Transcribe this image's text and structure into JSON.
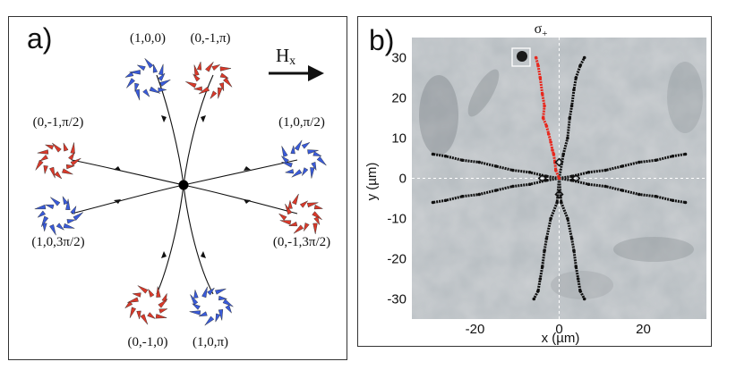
{
  "panel_a": {
    "label": "a)",
    "field_label_main": "H",
    "field_label_sub": "x",
    "states": [
      {
        "label": "(1,0,0)",
        "color": "#3a5bd9"
      },
      {
        "label": "(0,-1,π)",
        "color": "#d93a2b"
      },
      {
        "label": "(0,-1,π/2)",
        "color": "#d93a2b"
      },
      {
        "label": "(1,0,π/2)",
        "color": "#3a5bd9"
      },
      {
        "label": "(1,0,3π/2)",
        "color": "#3a5bd9"
      },
      {
        "label": "(0,-1,3π/2)",
        "color": "#d93a2b"
      },
      {
        "label": "(0,-1,0)",
        "color": "#d93a2b"
      },
      {
        "label": "(1,0,π)",
        "color": "#3a5bd9"
      }
    ]
  },
  "panel_b": {
    "label": "b)",
    "title_main": "σ",
    "title_sub": "+",
    "xlabel": "x (µm)",
    "ylabel": "y (µm)",
    "trajectory_colors": {
      "highlight": "#e8281e",
      "other": "#111111"
    },
    "chart_data": {
      "type": "line",
      "xlabel": "x (µm)",
      "ylabel": "y (µm)",
      "title": "σ+",
      "xlim": [
        -35,
        35
      ],
      "ylim": [
        -35,
        35
      ],
      "xticks": [
        -20,
        0,
        20
      ],
      "yticks": [
        30,
        20,
        10,
        0,
        -10,
        -20,
        -30
      ],
      "grid": false,
      "series": [
        {
          "color": "#e8281e",
          "x": [
            -5.5,
            -5,
            -4.5,
            -4,
            -3.5,
            -3.8,
            -3,
            -2.5,
            -2,
            -1.6,
            -1.3,
            -1,
            -0.8,
            0
          ],
          "y": [
            30,
            28,
            25,
            21,
            18,
            15,
            13,
            11,
            9,
            7,
            6,
            4,
            2,
            0
          ]
        },
        {
          "color": "#111111",
          "x": [
            0,
            1,
            2,
            2.5,
            3,
            3.5,
            4,
            5,
            6
          ],
          "y": [
            0,
            6,
            10,
            15,
            18,
            22,
            25,
            28,
            30
          ]
        },
        {
          "color": "#111111",
          "x": [
            0,
            3,
            7,
            11,
            15,
            19,
            23,
            27,
            30
          ],
          "y": [
            0,
            0.5,
            1.5,
            2,
            3,
            4,
            4.5,
            5.5,
            6
          ]
        },
        {
          "color": "#111111",
          "x": [
            0,
            3,
            7,
            11,
            15,
            19,
            23,
            27,
            30
          ],
          "y": [
            0,
            -0.5,
            -1.5,
            -2,
            -3,
            -4,
            -4.5,
            -5.5,
            -6
          ]
        },
        {
          "color": "#111111",
          "x": [
            0,
            0.5,
            2,
            3,
            3.5,
            4,
            4.5,
            5,
            6
          ],
          "y": [
            0,
            -6,
            -10,
            -15,
            -18,
            -22,
            -25,
            -28,
            -30
          ]
        },
        {
          "color": "#111111",
          "x": [
            0,
            -0.5,
            -2,
            -3,
            -3.5,
            -4,
            -4.5,
            -5,
            -6
          ],
          "y": [
            0,
            -6,
            -10,
            -15,
            -18,
            -22,
            -25,
            -28,
            -30
          ]
        },
        {
          "color": "#111111",
          "x": [
            0,
            -3,
            -7,
            -11,
            -15,
            -19,
            -23,
            -27,
            -30
          ],
          "y": [
            0,
            -0.5,
            -1.5,
            -2,
            -3,
            -4,
            -4.5,
            -5.5,
            -6
          ]
        },
        {
          "color": "#111111",
          "x": [
            0,
            -3,
            -7,
            -11,
            -15,
            -19,
            -23,
            -27,
            -30
          ],
          "y": [
            0,
            0.5,
            1.5,
            2,
            3,
            4,
            4.5,
            5.5,
            6
          ]
        }
      ]
    }
  }
}
